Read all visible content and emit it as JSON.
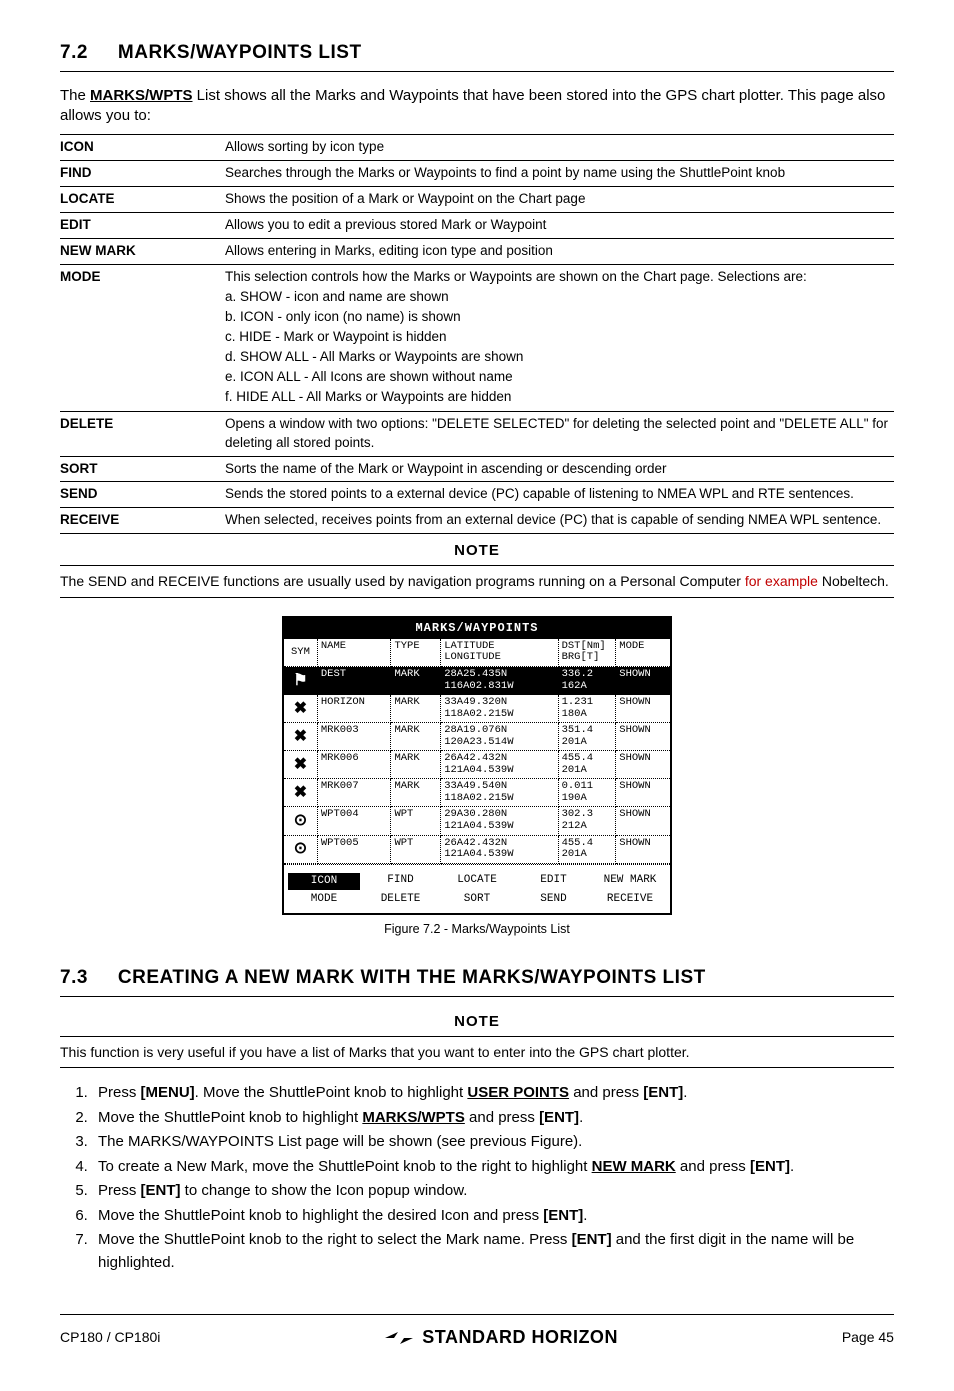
{
  "section72": {
    "number": "7.2",
    "title": "MARKS/WAYPOINTS LIST",
    "intro_pre": "The ",
    "intro_bold": "MARKS/WPTS",
    "intro_post": " List shows all the Marks and Waypoints that have been stored into the GPS chart plotter. This page also allows you to:"
  },
  "iconTable": [
    {
      "label": "ICON",
      "desc": "Allows sorting by icon type"
    },
    {
      "label": "FIND",
      "desc": "Searches through the Marks or Waypoints to find a point by name using the ShuttlePoint knob"
    },
    {
      "label": "LOCATE",
      "desc": "Shows the position of a Mark or Waypoint on the Chart page"
    },
    {
      "label": "EDIT",
      "desc": "Allows you to edit a previous stored Mark or Waypoint"
    },
    {
      "label": "NEW MARK",
      "desc": "Allows entering in Marks, editing icon type and position"
    },
    {
      "label": "MODE",
      "desc": "This selection controls how the Marks or Waypoints are shown on the Chart page. Selections are:",
      "subs": [
        "a. SHOW - icon and name are shown",
        "b. ICON - only icon (no name) is shown",
        "c. HIDE - Mark or Waypoint is hidden",
        "d. SHOW ALL - All Marks or Waypoints are shown",
        "e. ICON ALL - All Icons are shown without name",
        "f. HIDE ALL - All Marks or Waypoints are hidden"
      ]
    },
    {
      "label": "DELETE",
      "desc": "Opens a window with two options: \"DELETE SELECTED\" for deleting the selected point and \"DELETE ALL\" for deleting all stored points."
    },
    {
      "label": "SORT",
      "desc": "Sorts the name of the Mark or Waypoint in ascending or descending order"
    },
    {
      "label": "SEND",
      "desc": "Sends the stored points to a external device (PC) capable of listening to NMEA WPL and RTE sentences."
    },
    {
      "label": "RECEIVE",
      "desc": "When selected, receives points from an external device (PC) that is capable of sending NMEA WPL sentence."
    }
  ],
  "note1": {
    "heading": "NOTE",
    "pre": "The SEND and RECEIVE functions are usually used by navigation programs running on a Personal Computer ",
    "red": "for example",
    "post": " Nobeltech."
  },
  "screen": {
    "title": "MARKS/WAYPOINTS",
    "headers": {
      "sym": "SYM",
      "name": "NAME",
      "type": "TYPE",
      "lat": "LATITUDE\nLONGITUDE",
      "dst": "DST[Nm]\nBRG[T]",
      "mode": "MODE"
    },
    "rows": [
      {
        "sym": "⚑",
        "name": "DEST",
        "type": "MARK",
        "lat": "28A25.435N\n116A02.831W",
        "dst": "336.2\n162A",
        "mode": "SHOWN",
        "selected": true
      },
      {
        "sym": "✖",
        "name": "HORIZON",
        "type": "MARK",
        "lat": "33A49.320N\n118A02.215W",
        "dst": "1.231\n180A",
        "mode": "SHOWN"
      },
      {
        "sym": "✖",
        "name": "MRK003",
        "type": "MARK",
        "lat": "28A19.076N\n120A23.514W",
        "dst": "351.4\n201A",
        "mode": "SHOWN"
      },
      {
        "sym": "✖",
        "name": "MRK006",
        "type": "MARK",
        "lat": "26A42.432N\n121A04.539W",
        "dst": "455.4\n201A",
        "mode": "SHOWN"
      },
      {
        "sym": "✖",
        "name": "MRK007",
        "type": "MARK",
        "lat": "33A49.540N\n118A02.215W",
        "dst": "0.011\n190A",
        "mode": "SHOWN"
      },
      {
        "sym": "⊙",
        "name": "WPT004",
        "type": "WPT",
        "lat": "29A30.280N\n121A04.539W",
        "dst": "302.3\n212A",
        "mode": "SHOWN"
      },
      {
        "sym": "⊙",
        "name": "WPT005",
        "type": "WPT",
        "lat": "26A42.432N\n121A04.539W",
        "dst": "455.4\n201A",
        "mode": "SHOWN"
      }
    ],
    "footer": {
      "row1": [
        "ICON",
        "FIND",
        "LOCATE",
        "EDIT",
        "NEW MARK"
      ],
      "row2": [
        "MODE",
        "DELETE",
        "SORT",
        "SEND",
        "RECEIVE"
      ],
      "highlighted": "ICON"
    }
  },
  "figure_caption": "Figure 7.2 - Marks/Waypoints List",
  "section73": {
    "number": "7.3",
    "title": "CREATING A NEW MARK WITH THE MARKS/WAYPOINTS LIST"
  },
  "note2": {
    "heading": "NOTE",
    "text": "This function is very useful if you have a list of Marks that you want to enter into the GPS chart plotter."
  },
  "steps": [
    {
      "parts": [
        "Press ",
        {
          "b": "[MENU]"
        },
        ". Move the ShuttlePoint knob to highlight ",
        {
          "bu": "USER POINTS"
        },
        " and press ",
        {
          "b": "[ENT]"
        },
        "."
      ]
    },
    {
      "parts": [
        "Move the ShuttlePoint knob to highlight ",
        {
          "bu": "MARKS/WPTS"
        },
        " and press ",
        {
          "b": "[ENT]"
        },
        "."
      ]
    },
    {
      "parts": [
        "The MARKS/WAYPOINTS List page will be shown (see previous Figure)."
      ]
    },
    {
      "parts": [
        "To create a New Mark, move the ShuttlePoint knob to the right to highlight ",
        {
          "bu": "NEW MARK"
        },
        " and press ",
        {
          "b": "[ENT]"
        },
        "."
      ]
    },
    {
      "parts": [
        "Press ",
        {
          "b": "[ENT]"
        },
        " to change to show the Icon popup window."
      ]
    },
    {
      "parts": [
        "Move the ShuttlePoint knob to highlight the desired Icon and press ",
        {
          "b": "[ENT]"
        },
        "."
      ]
    },
    {
      "parts": [
        "Move the ShuttlePoint knob to the right to select the Mark name. Press ",
        {
          "b": "[ENT]"
        },
        " and the first digit in the name will be highlighted."
      ]
    }
  ],
  "footer": {
    "left": "CP180 / CP180i",
    "brand": "STANDARD HORIZON",
    "right": "Page 45"
  }
}
